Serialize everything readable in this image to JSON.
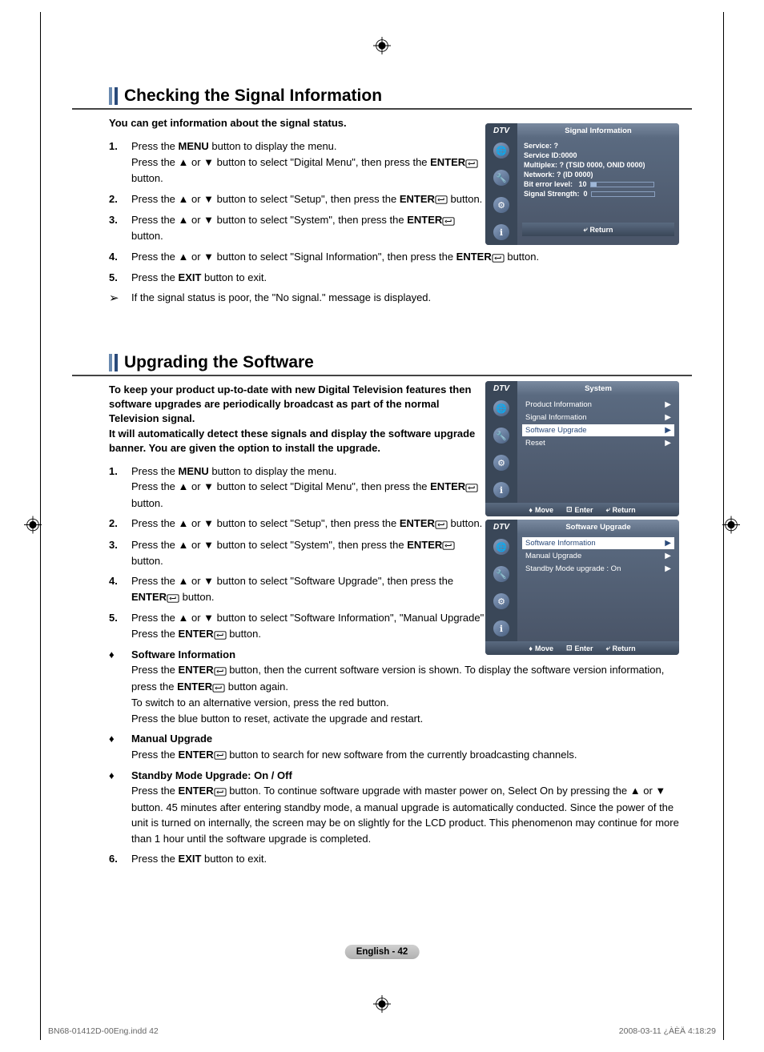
{
  "section1": {
    "title": "Checking the Signal Information",
    "intro": "You can get information about the signal status.",
    "steps": [
      "Press the <b>MENU</b> button to display the menu.<br>Press the ▲ or ▼ button to select \"Digital Menu\", then press the <b>ENTER</b>{enter} button.",
      "Press the ▲ or ▼ button to select \"Setup\", then press the <b>ENTER</b>{enter} button.",
      "Press the ▲ or ▼ button to select \"System\", then press the <b>ENTER</b>{enter} button.",
      "Press the ▲ or ▼ button to select \"Signal Information\", then press the <b>ENTER</b>{enter} button.",
      "Press the <b>EXIT</b> button to exit."
    ],
    "note": "If the signal status is poor, the \"No signal.\" message is displayed."
  },
  "section2": {
    "title": "Upgrading the Software",
    "intro": "To keep your product up-to-date with new Digital Television features then software upgrades are periodically broadcast as part of the normal Television signal.<br>It will automatically detect these signals and display the software upgrade banner. You are given the option to install the upgrade.",
    "steps": [
      "Press the <b>MENU</b> button to display the menu.<br>Press the ▲ or ▼ button to select \"Digital Menu\", then press the <b>ENTER</b>{enter} button.",
      "Press the ▲ or ▼ button to select \"Setup\", then press the <b>ENTER</b>{enter} button.",
      "Press the ▲ or ▼ button to select \"System\", then press the <b>ENTER</b>{enter} button.",
      "Press the ▲ or ▼ button to select \"Software Upgrade\", then press the <b>ENTER</b>{enter} button.",
      "Press the ▲ or ▼ button to select \"Software Information\", \"Manual Upgrade\" or \"Standby Mode upgrade\".<br>Press the <b>ENTER</b>{enter} button."
    ],
    "subs": [
      {
        "title": "Software Information",
        "body": "Press the <b>ENTER</b>{enter} button, then the current software version is shown. To display the software version information, press the <b>ENTER</b>{enter} button again.<br>To switch to an alternative version, press the red button.<br>Press the blue button to reset, activate the upgrade and restart."
      },
      {
        "title": "Manual Upgrade",
        "body": "Press the <b>ENTER</b>{enter} button to search for new software from the currently broadcasting channels."
      },
      {
        "title": "Standby Mode Upgrade: On / Off",
        "body": "Press the <b>ENTER</b>{enter} button. To continue software upgrade with master power on, Select On by pressing the ▲ or ▼ button. 45 minutes after entering standby mode, a manual upgrade is automatically conducted. Since the power of the unit is turned on internally, the screen may be on slightly for the LCD product. This phenomenon may continue for more than 1 hour until the software upgrade is completed."
      }
    ],
    "step6": "Press the <b>EXIT</b> button to exit."
  },
  "osd1": {
    "dtv": "DTV",
    "title": "Signal Information",
    "lines": {
      "service": "Service: ?",
      "serviceId": "Service ID:0000",
      "multiplex": "Multiplex: ? (TSID 0000, ONID 0000)",
      "network": "Network: ? (ID 0000)",
      "bitError": "Bit error level:",
      "bitErrorVal": "10",
      "strength": "Signal Strength:",
      "strengthVal": "0"
    },
    "return": "Return"
  },
  "osd2": {
    "dtv": "DTV",
    "title": "System",
    "items": [
      "Product Information",
      "Signal Information",
      "Software Upgrade",
      "Reset"
    ],
    "selected": 2,
    "move": "Move",
    "enter": "Enter",
    "return": "Return"
  },
  "osd3": {
    "dtv": "DTV",
    "title": "Software Upgrade",
    "items": [
      "Software Information",
      "Manual Upgrade",
      "Standby Mode upgrade : On"
    ],
    "selected": 0,
    "move": "Move",
    "enter": "Enter",
    "return": "Return"
  },
  "pageNum": "English - 42",
  "footerLeft": "BN68-01412D-00Eng.indd   42",
  "footerRight": "2008-03-11   ¿ÀÈÄ 4:18:29"
}
